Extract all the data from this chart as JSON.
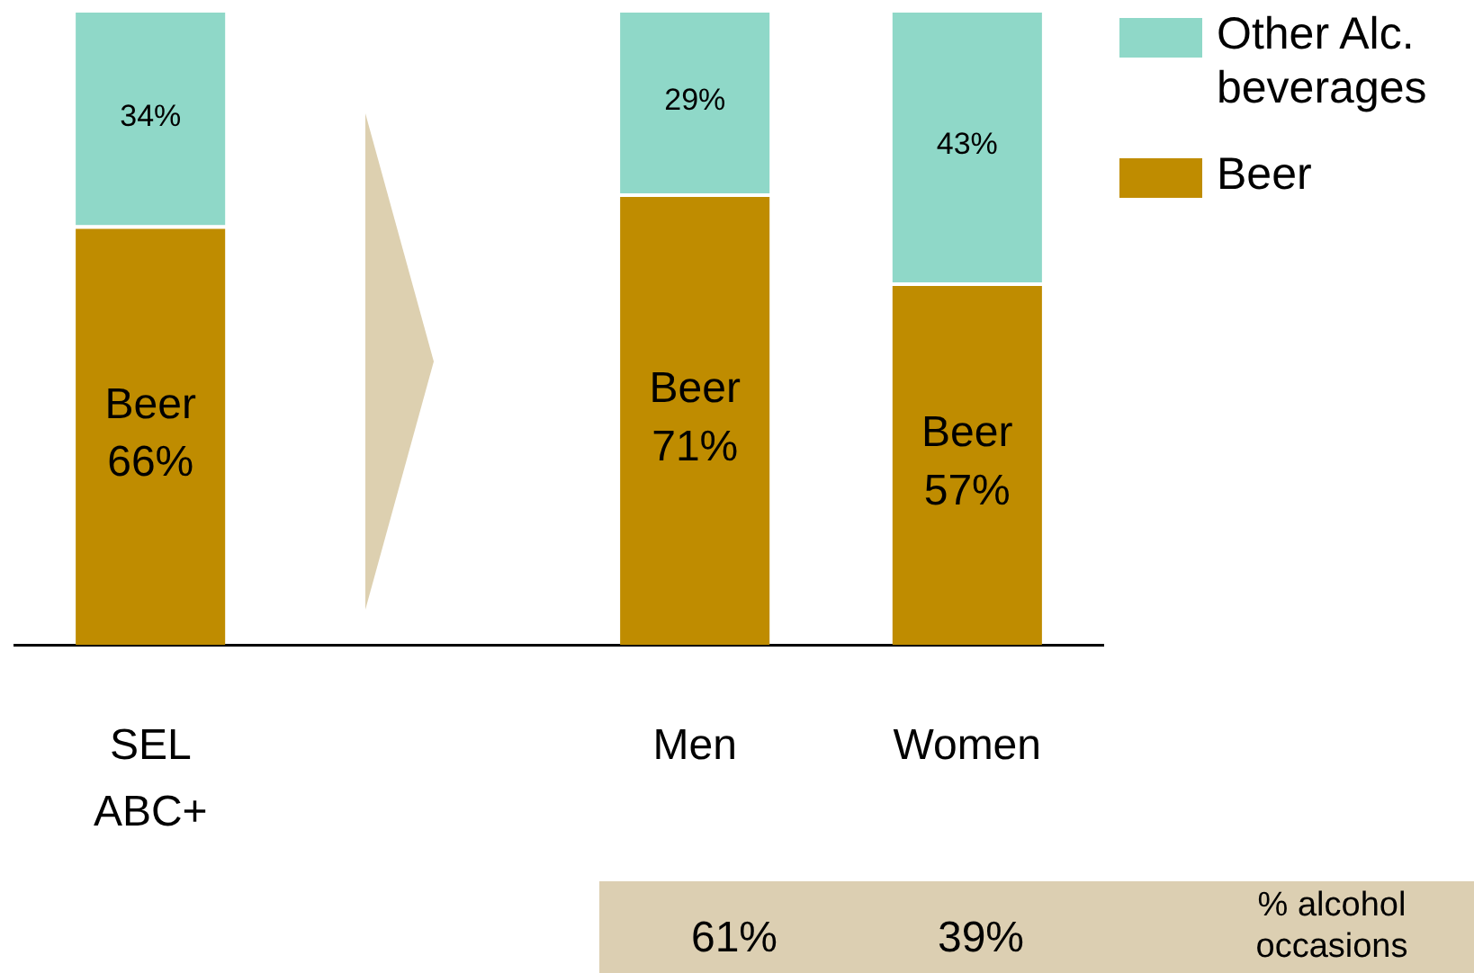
{
  "chart_data": {
    "type": "bar",
    "stacked": true,
    "categories": [
      "SEL\nABC+",
      null,
      "Men",
      "Women"
    ],
    "ylim": [
      0,
      100
    ],
    "legend": "top right",
    "series": [
      {
        "name": "Beer",
        "color": "#bf8c00",
        "values": [
          66,
          null,
          71,
          57
        ],
        "value_labels": [
          "Beer\n66%",
          null,
          "Beer\n71%",
          "Beer\n57%"
        ]
      },
      {
        "name": "Other Alc.\nbeverages",
        "color": "#8fd8c8",
        "values": [
          34,
          null,
          29,
          43
        ],
        "value_labels": [
          "34%",
          null,
          "29%",
          "43%"
        ]
      }
    ],
    "annotations": [
      "61%",
      "39%",
      "% alcohol occasions"
    ]
  }
}
